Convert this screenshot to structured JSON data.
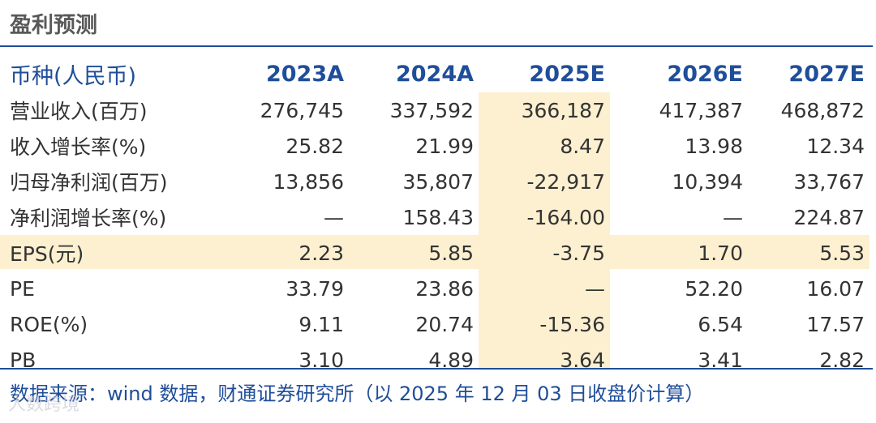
{
  "title": "盈利预测",
  "table": {
    "header": [
      "币种(人民币)",
      "2023A",
      "2024A",
      "2025E",
      "2026E",
      "2027E"
    ],
    "highlight_column": "2025E",
    "highlight_row": "EPS(元)",
    "highlight_color": "#fdf0d0",
    "rows": [
      {
        "label": "营业收入(百万)",
        "values": [
          "276,745",
          "337,592",
          "366,187",
          "417,387",
          "468,872"
        ]
      },
      {
        "label": "收入增长率(%)",
        "values": [
          "25.82",
          "21.99",
          "8.47",
          "13.98",
          "12.34"
        ]
      },
      {
        "label": "归母净利润(百万)",
        "values": [
          "13,856",
          "35,807",
          "-22,917",
          "10,394",
          "33,767"
        ]
      },
      {
        "label": "净利润增长率(%)",
        "values": [
          "—",
          "158.43",
          "-164.00",
          "—",
          "224.87"
        ]
      },
      {
        "label": "EPS(元)",
        "values": [
          "2.23",
          "5.85",
          "-3.75",
          "1.70",
          "5.53"
        ]
      },
      {
        "label": "PE",
        "values": [
          "33.79",
          "23.86",
          "—",
          "52.20",
          "16.07"
        ]
      },
      {
        "label": "ROE(%)",
        "values": [
          "9.11",
          "20.74",
          "-15.36",
          "6.54",
          "17.57"
        ]
      },
      {
        "label": "PB",
        "values": [
          "3.10",
          "4.89",
          "3.64",
          "3.41",
          "2.82"
        ]
      }
    ]
  },
  "source": "数据来源：wind 数据，财通证券研究所（以 2025 年 12 月 03 日收盘价计算）",
  "watermark": "人数跨境",
  "accent_color": "#1f4e9a"
}
